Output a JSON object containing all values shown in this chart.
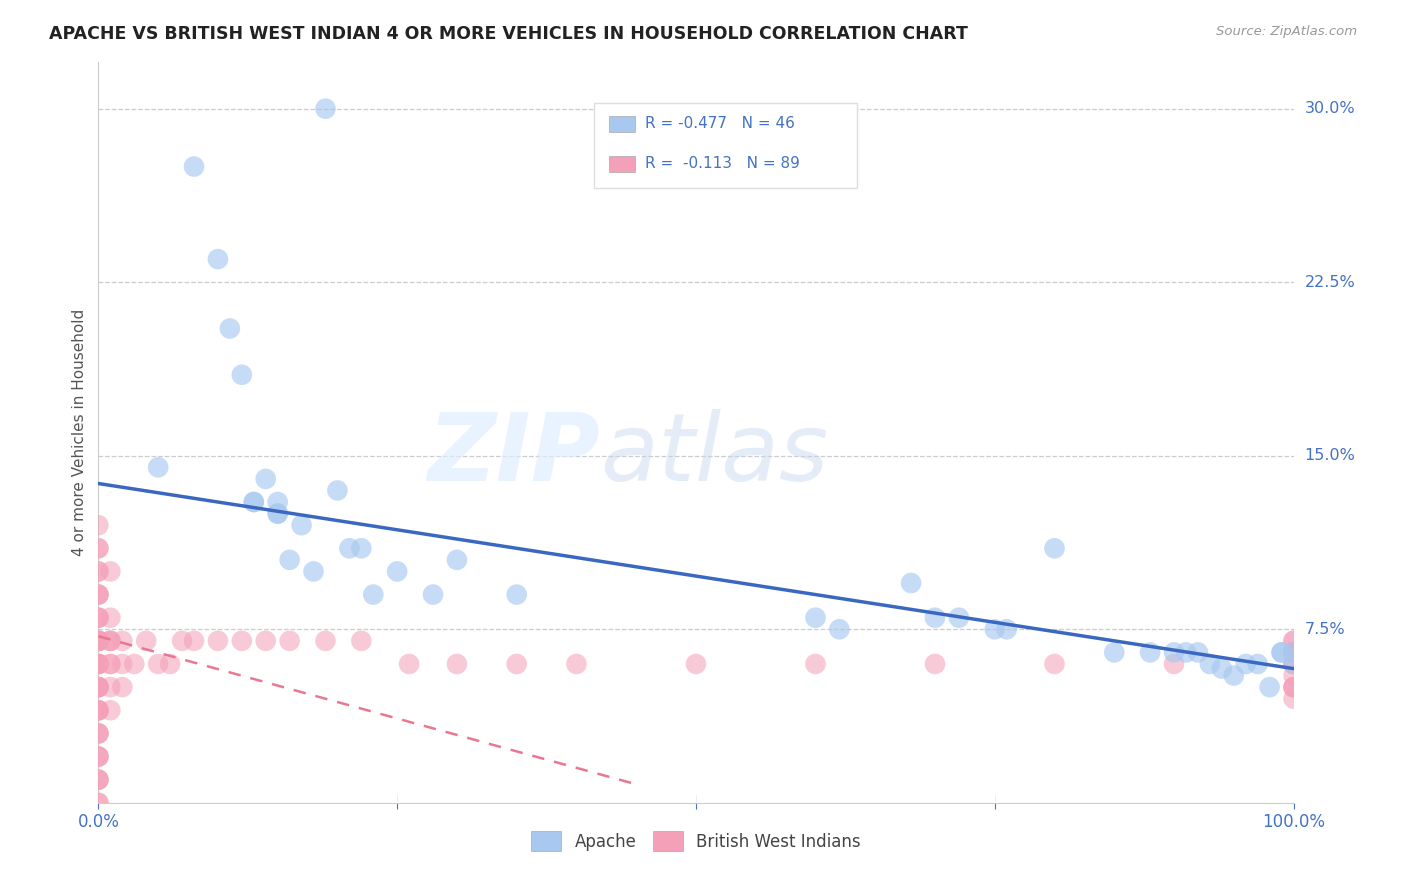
{
  "title": "APACHE VS BRITISH WEST INDIAN 4 OR MORE VEHICLES IN HOUSEHOLD CORRELATION CHART",
  "source": "Source: ZipAtlas.com",
  "ylabel_label": "4 or more Vehicles in Household",
  "legend_apache": "Apache",
  "legend_bwi": "British West Indians",
  "R_apache": -0.477,
  "N_apache": 46,
  "R_bwi": -0.113,
  "N_bwi": 89,
  "apache_color": "#a8c8f0",
  "bwi_color": "#f4a0b8",
  "apache_line_color": "#3a68c0",
  "bwi_line_color": "#e87890",
  "title_color": "#333333",
  "axis_label_color": "#555555",
  "tick_color": "#4472c4",
  "background_color": "#ffffff",
  "grid_color": "#cccccc",
  "apache_scatter_x": [
    0.05,
    0.08,
    0.1,
    0.11,
    0.12,
    0.13,
    0.13,
    0.14,
    0.15,
    0.15,
    0.15,
    0.16,
    0.17,
    0.18,
    0.19,
    0.2,
    0.21,
    0.22,
    0.23,
    0.25,
    0.28,
    0.3,
    0.35,
    0.6,
    0.62,
    0.68,
    0.7,
    0.72,
    0.75,
    0.76,
    0.8,
    0.85,
    0.88,
    0.9,
    0.91,
    0.92,
    0.93,
    0.94,
    0.95,
    0.96,
    0.97,
    0.98,
    0.99,
    0.99,
    1.0,
    1.0
  ],
  "apache_scatter_y": [
    0.145,
    0.275,
    0.235,
    0.205,
    0.185,
    0.13,
    0.13,
    0.14,
    0.13,
    0.125,
    0.125,
    0.105,
    0.12,
    0.1,
    0.3,
    0.135,
    0.11,
    0.11,
    0.09,
    0.1,
    0.09,
    0.105,
    0.09,
    0.08,
    0.075,
    0.095,
    0.08,
    0.08,
    0.075,
    0.075,
    0.11,
    0.065,
    0.065,
    0.065,
    0.065,
    0.065,
    0.06,
    0.058,
    0.055,
    0.06,
    0.06,
    0.05,
    0.065,
    0.065,
    0.065,
    0.06
  ],
  "bwi_scatter_x": [
    0.0,
    0.0,
    0.0,
    0.0,
    0.0,
    0.0,
    0.0,
    0.0,
    0.0,
    0.0,
    0.0,
    0.0,
    0.0,
    0.0,
    0.0,
    0.0,
    0.0,
    0.0,
    0.0,
    0.0,
    0.0,
    0.0,
    0.0,
    0.0,
    0.0,
    0.0,
    0.0,
    0.0,
    0.0,
    0.0,
    0.0,
    0.0,
    0.0,
    0.0,
    0.0,
    0.0,
    0.0,
    0.0,
    0.0,
    0.0,
    0.0,
    0.0,
    0.01,
    0.01,
    0.01,
    0.01,
    0.01,
    0.01,
    0.01,
    0.01,
    0.01,
    0.02,
    0.02,
    0.02,
    0.03,
    0.04,
    0.05,
    0.06,
    0.07,
    0.08,
    0.1,
    0.12,
    0.14,
    0.16,
    0.19,
    0.22,
    0.26,
    0.3,
    0.35,
    0.4,
    0.5,
    0.6,
    0.7,
    0.8,
    0.9,
    1.0,
    1.0,
    1.0,
    1.0,
    1.0,
    1.0,
    1.0,
    1.0,
    1.0,
    1.0,
    1.0,
    1.0,
    1.0,
    1.0
  ],
  "bwi_scatter_y": [
    0.0,
    0.0,
    0.01,
    0.01,
    0.01,
    0.02,
    0.02,
    0.02,
    0.03,
    0.03,
    0.03,
    0.04,
    0.04,
    0.04,
    0.04,
    0.05,
    0.05,
    0.05,
    0.05,
    0.05,
    0.06,
    0.06,
    0.06,
    0.06,
    0.06,
    0.07,
    0.07,
    0.07,
    0.07,
    0.07,
    0.07,
    0.08,
    0.08,
    0.08,
    0.09,
    0.09,
    0.09,
    0.1,
    0.1,
    0.11,
    0.11,
    0.12,
    0.04,
    0.05,
    0.06,
    0.06,
    0.07,
    0.07,
    0.07,
    0.08,
    0.1,
    0.05,
    0.06,
    0.07,
    0.06,
    0.07,
    0.06,
    0.06,
    0.07,
    0.07,
    0.07,
    0.07,
    0.07,
    0.07,
    0.07,
    0.07,
    0.06,
    0.06,
    0.06,
    0.06,
    0.06,
    0.06,
    0.06,
    0.06,
    0.06,
    0.045,
    0.05,
    0.05,
    0.05,
    0.055,
    0.06,
    0.06,
    0.065,
    0.065,
    0.065,
    0.065,
    0.065,
    0.07,
    0.07
  ],
  "xlim": [
    0.0,
    1.0
  ],
  "ylim": [
    0.0,
    0.32
  ],
  "apache_line_x0": 0.0,
  "apache_line_y0": 0.138,
  "apache_line_x1": 1.0,
  "apache_line_y1": 0.058,
  "bwi_line_x0": 0.0,
  "bwi_line_y0": 0.072,
  "bwi_line_x1": 0.45,
  "bwi_line_y1": 0.008
}
